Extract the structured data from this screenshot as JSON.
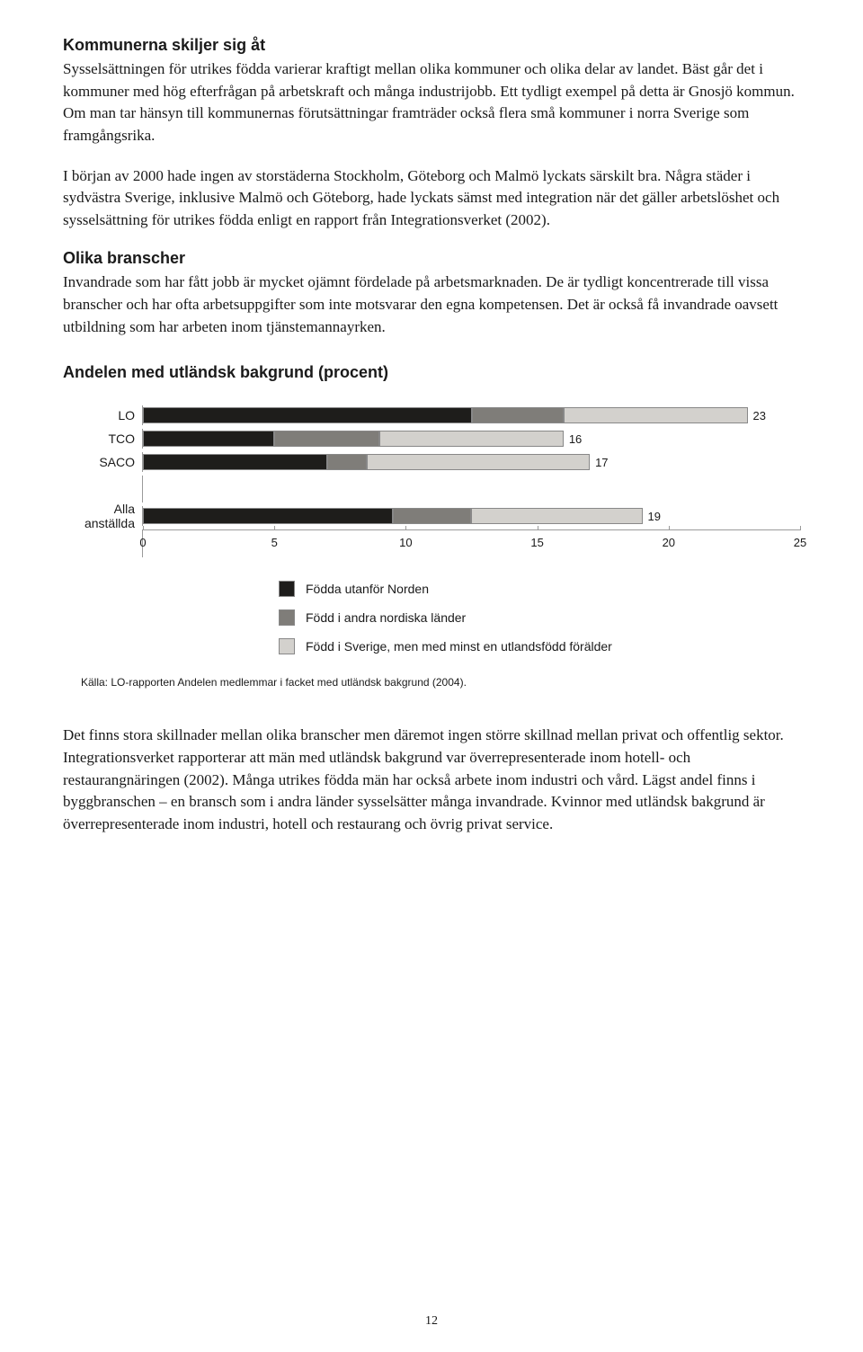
{
  "section1": {
    "heading": "Kommunerna skiljer sig åt",
    "p1": "Sysselsättningen för utrikes födda varierar kraftigt mellan olika kommuner och olika delar av landet. Bäst går det i kommuner med hög efterfrågan på arbetskraft och många industrijobb. Ett tydligt exempel på detta är Gnosjö kommun. Om man tar hänsyn till kommunernas förutsättningar framträder också flera små kommuner i norra Sverige som framgångsrika.",
    "p2": "I början av 2000 hade ingen av storstäderna Stockholm, Göteborg och Malmö lyckats särskilt bra. Några städer i sydvästra Sverige, inklusive Malmö och Göteborg, hade lyckats sämst med integration när det gäller arbetslöshet och sysselsättning för utrikes födda enligt en rapport från Integrationsverket (2002)."
  },
  "section2": {
    "heading": "Olika branscher",
    "p1": "Invandrade som har fått jobb är mycket ojämnt fördelade på arbetsmarknaden. De är tydligt koncentrerade till vissa branscher och har ofta arbetsuppgifter som inte motsvarar den egna kompetensen. Det är också få invandrade oavsett utbildning som har arbeten inom tjänstemannayrken."
  },
  "chart": {
    "title": "Andelen med utländsk bakgrund (procent)",
    "type": "stacked-bar-horizontal",
    "colors": {
      "seg1": "#1e1d1b",
      "seg2": "#7f7d79",
      "seg3": "#d3d1cd",
      "border": "#9a9a9a",
      "background": "#ffffff"
    },
    "axis": {
      "xlim": [
        0,
        25
      ],
      "xtick_step": 5,
      "ticks": [
        0,
        5,
        10,
        15,
        20,
        25
      ]
    },
    "bars": [
      {
        "label": "LO",
        "segments": [
          12.5,
          3.5,
          7.0
        ],
        "total": 23
      },
      {
        "label": "TCO",
        "segments": [
          5.0,
          4.0,
          7.0
        ],
        "total": 16
      },
      {
        "label": "SACO",
        "segments": [
          7.0,
          1.5,
          8.5
        ],
        "total": 17
      },
      {
        "label": "Alla anställda",
        "segments": [
          9.5,
          3.0,
          6.5
        ],
        "total": 19
      }
    ],
    "legend": [
      "Födda utanför Norden",
      "Född i andra nordiska länder",
      "Född i Sverige, men med minst en utlandsfödd förälder"
    ],
    "source": "Källa: LO-rapporten Andelen medlemmar i facket med utländsk bakgrund (2004).",
    "label_fontsize": 14,
    "title_fontsize": 18
  },
  "section3": {
    "p1": "Det finns stora skillnader mellan olika branscher men däremot ingen större skillnad mellan privat och offentlig sektor. Integrationsverket rapporterar att män med utländsk bakgrund var överrepresenterade inom hotell- och restaurangnäringen (2002). Många utrikes födda män har också arbete inom industri och vård. Lägst andel finns i byggbranschen – en bransch som i andra länder sysselsätter många invandrade. Kvinnor med utländsk bakgrund är överrepresenterade inom industri, hotell och restaurang och övrig privat service."
  },
  "page_number": "12"
}
